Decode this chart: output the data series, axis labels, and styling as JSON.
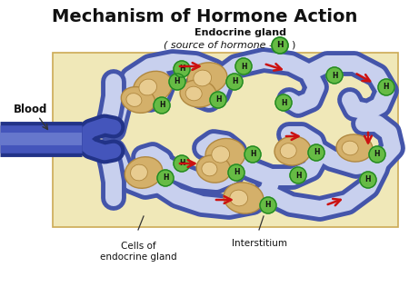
{
  "title": "Mechanism of Hormone Action",
  "title_fontsize": 14,
  "title_fontweight": "bold",
  "bg_color": "#ffffff",
  "box_color": "#f0e8b8",
  "label_endocrine_gland": "Endocrine gland",
  "label_source": "( source of hormone -",
  "label_close_paren": " )",
  "label_blood": "Blood",
  "label_cells": "Cells of\nendocrine gland",
  "label_interstitium": "Interstitium",
  "cap_fill": "#c8d0ee",
  "cap_edge": "#4455aa",
  "cell_fill": "#d4b06a",
  "cell_fill2": "#e8cc90",
  "cell_edge": "#b08840",
  "H_circle_color": "#66bb44",
  "H_circle_edge": "#228822",
  "H_text_color": "#111111",
  "H_text": "H",
  "arrow_color": "#cc1111",
  "vessel_fill": "#4455bb",
  "vessel_edge": "#223388"
}
